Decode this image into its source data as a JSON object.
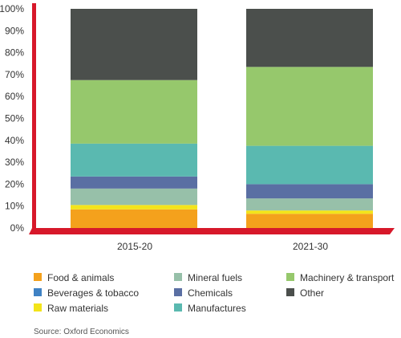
{
  "chart_data": {
    "type": "bar",
    "stacked": true,
    "categories": [
      "2015-20",
      "2021-30"
    ],
    "ylim": [
      0,
      100
    ],
    "yticks": [
      "0%",
      "10%",
      "20%",
      "30%",
      "40%",
      "50%",
      "60%",
      "70%",
      "80%",
      "90%",
      "100%"
    ],
    "grid": false,
    "legend_position": "bottom",
    "series": [
      {
        "name": "Food & animals",
        "color": "#f4a11c",
        "values": [
          8.5,
          6.5
        ]
      },
      {
        "name": "Raw materials",
        "color": "#f3e41a",
        "values": [
          2,
          1.5
        ]
      },
      {
        "name": "Mineral fuels",
        "color": "#97c0a9",
        "values": [
          7.5,
          5.5
        ]
      },
      {
        "name": "Chemicals",
        "color": "#5a6fa3",
        "values": [
          5.5,
          6.5
        ]
      },
      {
        "name": "Manufactures",
        "color": "#5ab9b0",
        "values": [
          15,
          17.5
        ]
      },
      {
        "name": "Machinery & transport",
        "color": "#96c86c",
        "values": [
          29,
          36
        ]
      },
      {
        "name": "Other",
        "color": "#4b4f4c",
        "values": [
          32.5,
          26.5
        ]
      }
    ],
    "legend_order": [
      "Food & animals",
      "Beverages & tobacco",
      "Raw materials",
      "Mineral fuels",
      "Chemicals",
      "Manufactures",
      "Machinery & transport",
      "Other"
    ],
    "legend_colors": {
      "Food & animals": "#f4a11c",
      "Beverages & tobacco": "#3f82c4",
      "Raw materials": "#f3e41a",
      "Mineral fuels": "#97c0a9",
      "Chemicals": "#5a6fa3",
      "Manufactures": "#5ab9b0",
      "Machinery & transport": "#96c86c",
      "Other": "#4b4f4c"
    },
    "axis_color": "#d7182a",
    "source": "Source: Oxford Economics"
  }
}
